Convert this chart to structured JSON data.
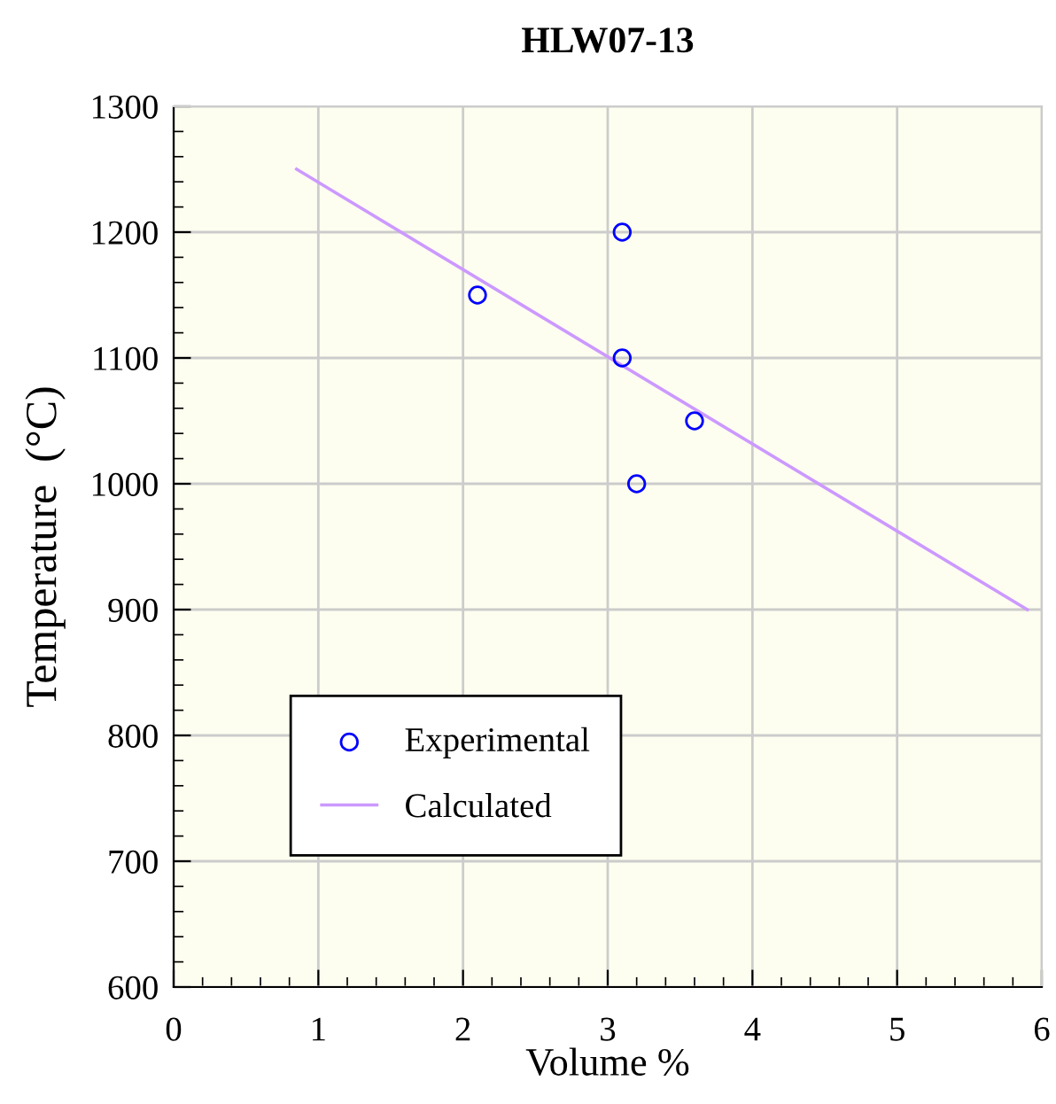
{
  "chart_data": {
    "type": "scatter",
    "title": "HLW07-13",
    "xlabel": "Volume %",
    "ylabel": "Temperature  (°C)",
    "series": [
      {
        "name": "Experimental",
        "color": "#0000ff",
        "marker": "circle",
        "x": [
          2.1,
          3.1,
          3.1,
          3.6,
          3.2
        ],
        "values": [
          1150,
          1200,
          1100,
          1050,
          1000
        ]
      },
      {
        "name": "Calculated",
        "type": "line",
        "color": "#cc99ff",
        "marker": "none",
        "line_style": "solid",
        "x": [
          0.85,
          5.9
        ],
        "values": [
          1250,
          900
        ]
      }
    ],
    "xlim": [
      0,
      6
    ],
    "xticks": [
      0,
      1,
      2,
      3,
      4,
      5,
      6
    ],
    "ylim": [
      600,
      1300
    ],
    "yticks": [
      600,
      700,
      800,
      900,
      1000,
      1100,
      1200,
      1300
    ],
    "grid": true,
    "legend": "bottom left"
  }
}
